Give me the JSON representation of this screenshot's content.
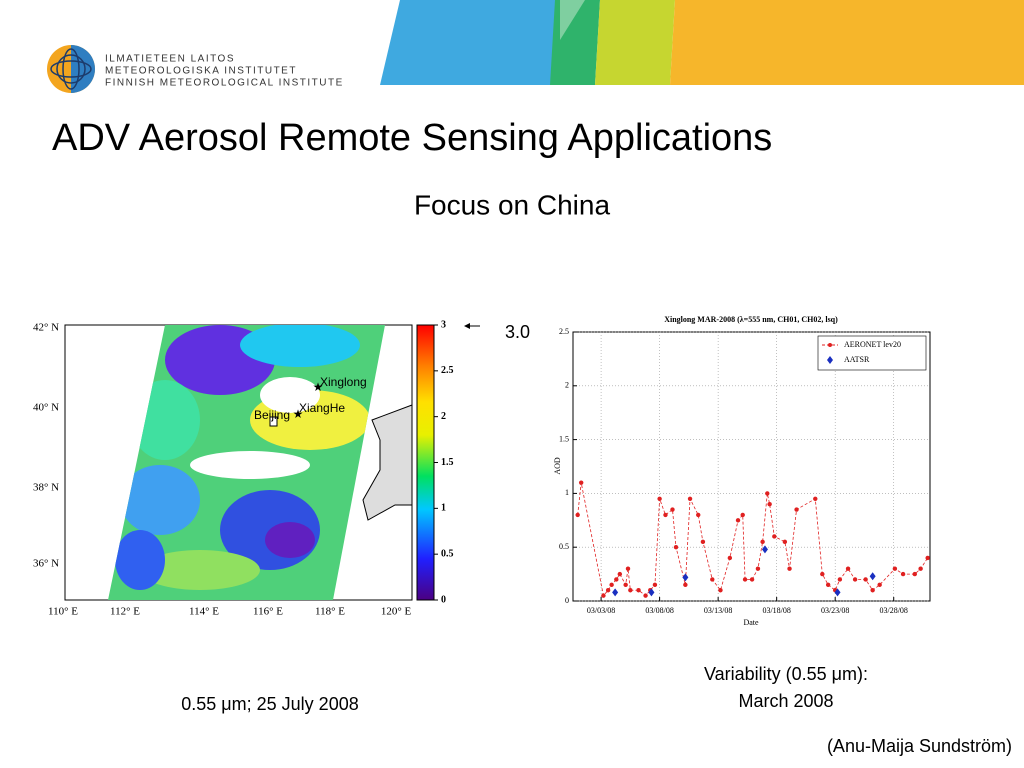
{
  "header": {
    "org_lines": [
      "ILMATIETEEN LAITOS",
      "METEOROLOGISKA INSTITUTET",
      "FINNISH METEOROLOGICAL INSTITUTE"
    ]
  },
  "title": "ADV Aerosol Remote Sensing Applications",
  "subtitle": "Focus on China",
  "map": {
    "lat_labels": [
      "42° N",
      "40° N",
      "38° N",
      "36° N"
    ],
    "lon_labels": [
      "110° E",
      "112° E",
      "114° E",
      "116° E",
      "118° E",
      "120° E"
    ],
    "place_labels": [
      "Xinglong",
      "XiangHe",
      "Beijing"
    ],
    "colorbar": {
      "lim": [
        0,
        3
      ],
      "ticks": [
        0,
        0.5,
        1,
        1.5,
        2,
        2.5,
        3
      ]
    },
    "max_note": "3.0",
    "caption": "0.55 μm; 25 July 2008"
  },
  "chart_data": {
    "type": "line",
    "title": "Xinglong MAR-2008 (λ=555 nm, CH01, CH02, lsq)",
    "xlabel": "Date",
    "ylabel": "AOD",
    "xlim": [
      0.6,
      31.1
    ],
    "xticks": [
      {
        "value": 3,
        "label": "03/03/08"
      },
      {
        "value": 8,
        "label": "03/08/08"
      },
      {
        "value": 13,
        "label": "03/13/08"
      },
      {
        "value": 18,
        "label": "03/18/08"
      },
      {
        "value": 23,
        "label": "03/23/08"
      },
      {
        "value": 28,
        "label": "03/28/08"
      }
    ],
    "ylim": [
      0,
      2.5
    ],
    "yticks": [
      0,
      0.5,
      1,
      1.5,
      2,
      2.5
    ],
    "grid": true,
    "legend": "upper right",
    "series": [
      {
        "name": "AERONET lev20",
        "color": "#e02020",
        "marker": "circle",
        "x": [
          1.0,
          1.3,
          3.2,
          3.6,
          3.9,
          4.3,
          4.6,
          5.1,
          5.3,
          5.5,
          6.2,
          6.8,
          7.2,
          7.6,
          8.0,
          8.5,
          9.1,
          9.4,
          10.2,
          10.6,
          11.3,
          11.7,
          12.5,
          13.2,
          14.0,
          14.7,
          15.1,
          15.3,
          15.9,
          16.4,
          16.8,
          17.2,
          17.4,
          17.8,
          18.7,
          19.1,
          19.7,
          21.3,
          21.9,
          22.4,
          23.0,
          23.4,
          24.1,
          24.7,
          25.6,
          26.2,
          26.8,
          28.1,
          28.8,
          29.8,
          30.3,
          30.9
        ],
        "values": [
          0.8,
          1.1,
          0.05,
          0.1,
          0.15,
          0.2,
          0.25,
          0.15,
          0.3,
          0.1,
          0.1,
          0.05,
          0.1,
          0.15,
          0.95,
          0.8,
          0.85,
          0.5,
          0.15,
          0.95,
          0.8,
          0.55,
          0.2,
          0.1,
          0.4,
          0.75,
          0.8,
          0.2,
          0.2,
          0.3,
          0.55,
          1.0,
          0.9,
          0.6,
          0.55,
          0.3,
          0.85,
          0.95,
          0.25,
          0.15,
          0.1,
          0.2,
          0.3,
          0.2,
          0.2,
          0.1,
          0.15,
          0.3,
          0.25,
          0.25,
          0.3,
          0.4
        ]
      },
      {
        "name": "AATSR",
        "color": "#1a2fc0",
        "marker": "diamond",
        "x": [
          4.2,
          7.3,
          10.2,
          17.0,
          23.2,
          26.2
        ],
        "values": [
          0.08,
          0.08,
          0.22,
          0.48,
          0.08,
          0.23
        ]
      }
    ]
  },
  "chart_caption": [
    "Variability (0.55 μm):",
    "March 2008"
  ],
  "credit": "(Anu-Maija Sundström)"
}
